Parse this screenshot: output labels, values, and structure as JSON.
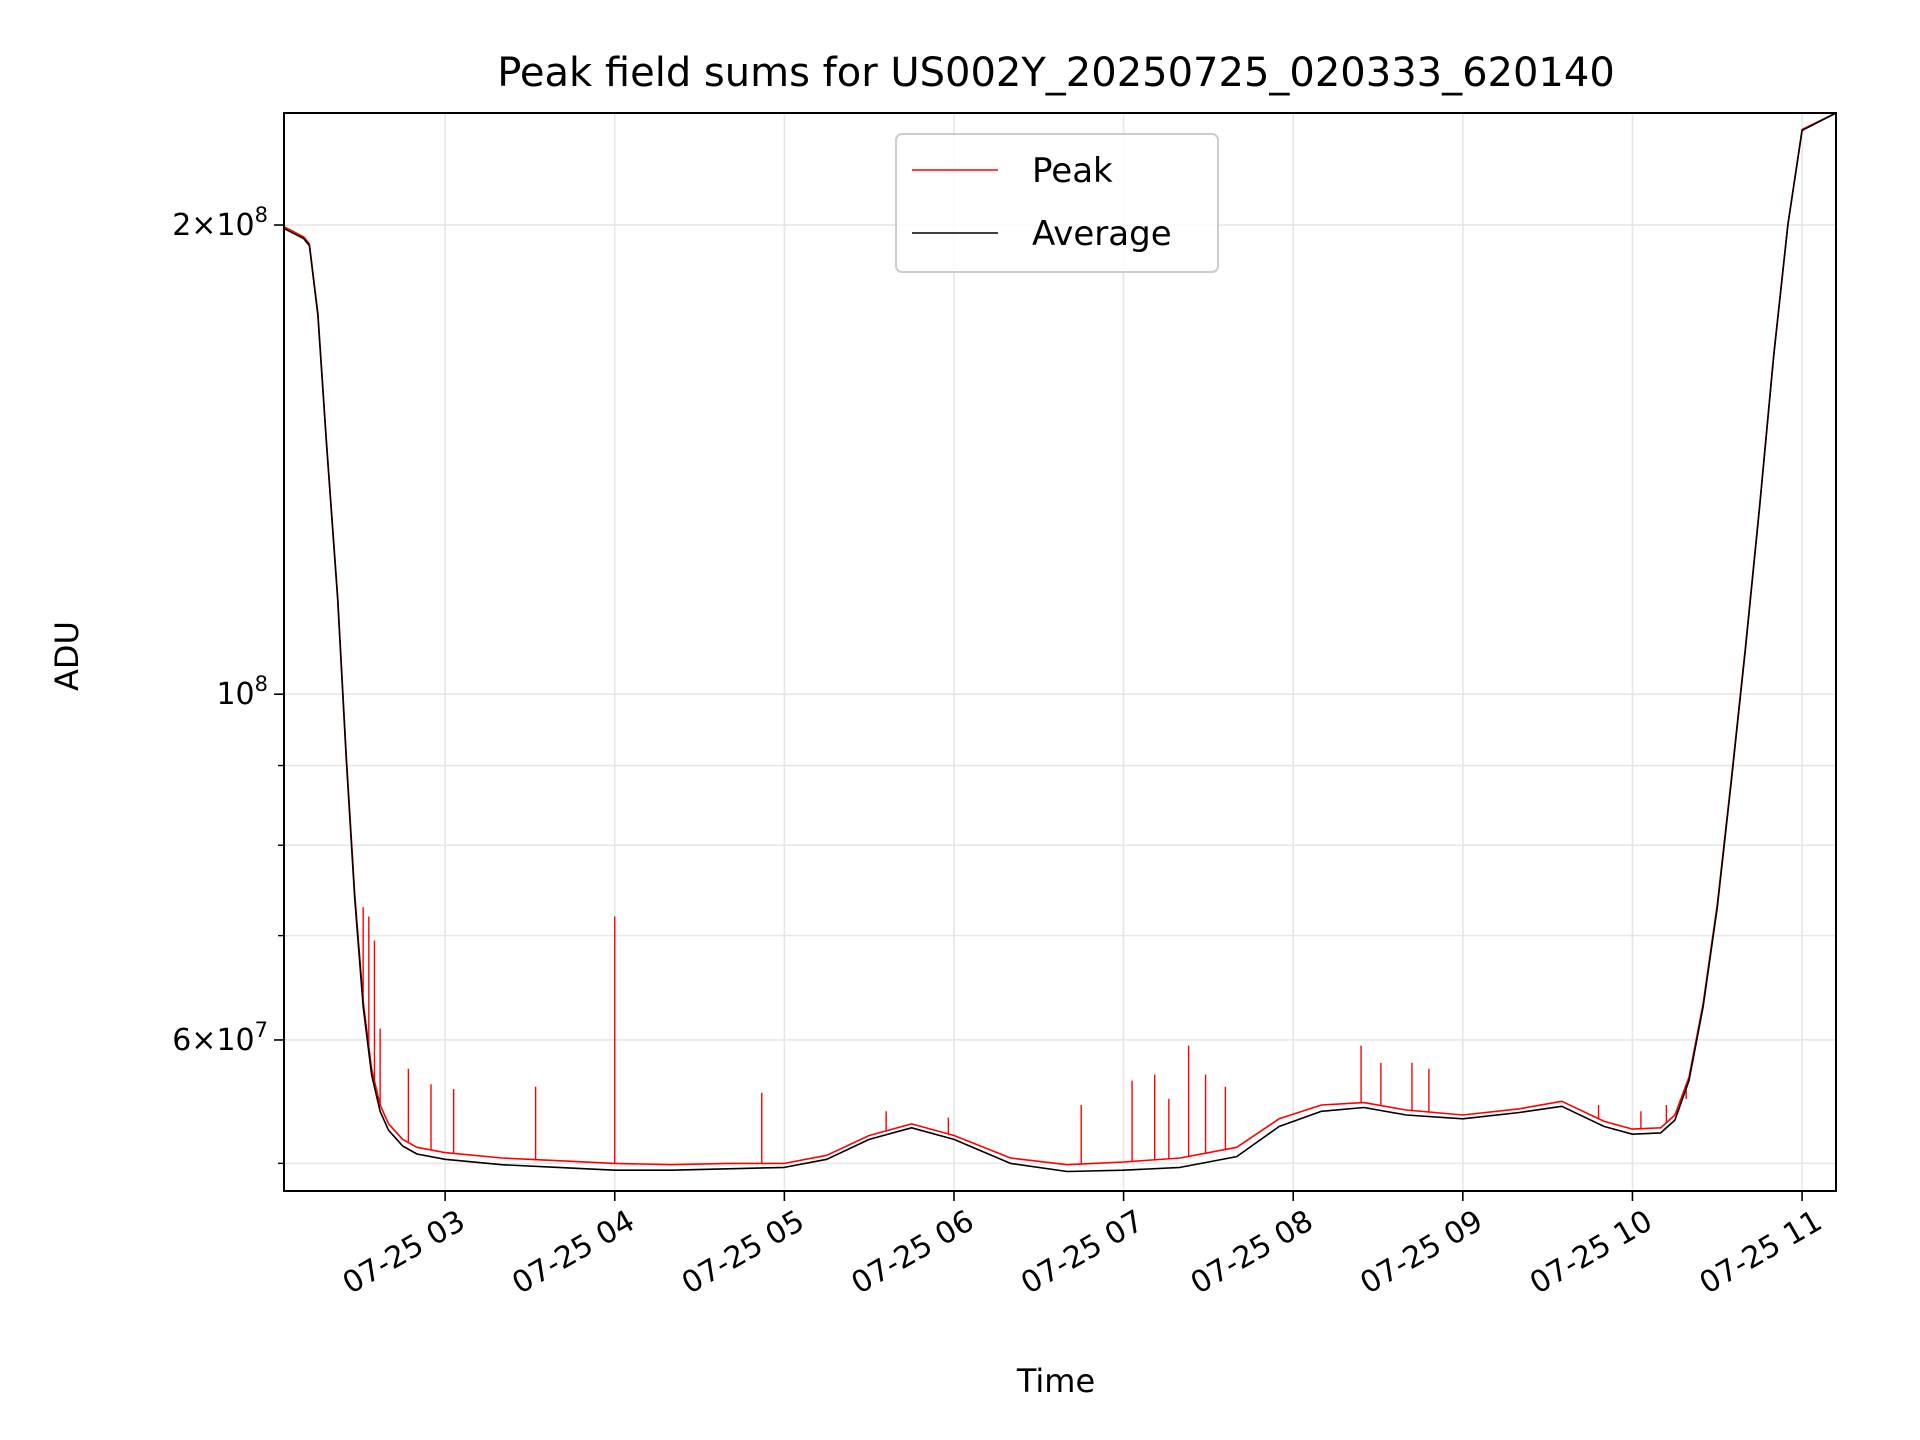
{
  "chart_data": {
    "type": "line",
    "title": "Peak field sums for US002Y_20250725_020333_620140",
    "xlabel": "Time",
    "ylabel": "ADU",
    "y_scale": "log",
    "xlim": [
      "2025-07-25 02:03",
      "2025-07-25 11:12"
    ],
    "ylim": [
      48000000,
      236000000
    ],
    "x_ticks": [
      "07-25 03",
      "07-25 04",
      "07-25 05",
      "07-25 06",
      "07-25 07",
      "07-25 08",
      "07-25 09",
      "07-25 10",
      "07-25 11"
    ],
    "y_major_ticks": [
      {
        "value": 60000000,
        "base": "6",
        "exp": "7"
      },
      {
        "value": 100000000,
        "base": "",
        "exp": "8"
      },
      {
        "value": 200000000,
        "base": "2",
        "exp": "8"
      }
    ],
    "y_minor_ticks": [
      50000000,
      70000000,
      80000000,
      90000000
    ],
    "grid": true,
    "legend_position": "upper-center",
    "colors": {
      "Peak": "#ff0000",
      "Average": "#000000"
    },
    "series": [
      {
        "name": "Average",
        "x": [
          "2025-07-25 02:03",
          "2025-07-25 02:10",
          "2025-07-25 02:12",
          "2025-07-25 02:15",
          "2025-07-25 02:18",
          "2025-07-25 02:22",
          "2025-07-25 02:25",
          "2025-07-25 02:28",
          "2025-07-25 02:31",
          "2025-07-25 02:34",
          "2025-07-25 02:37",
          "2025-07-25 02:40",
          "2025-07-25 02:45",
          "2025-07-25 02:50",
          "2025-07-25 03:00",
          "2025-07-25 03:20",
          "2025-07-25 03:40",
          "2025-07-25 04:00",
          "2025-07-25 04:20",
          "2025-07-25 04:40",
          "2025-07-25 05:00",
          "2025-07-25 05:15",
          "2025-07-25 05:30",
          "2025-07-25 05:45",
          "2025-07-25 06:00",
          "2025-07-25 06:20",
          "2025-07-25 06:40",
          "2025-07-25 07:00",
          "2025-07-25 07:20",
          "2025-07-25 07:40",
          "2025-07-25 07:55",
          "2025-07-25 08:10",
          "2025-07-25 08:25",
          "2025-07-25 08:40",
          "2025-07-25 09:00",
          "2025-07-25 09:20",
          "2025-07-25 09:35",
          "2025-07-25 09:50",
          "2025-07-25 10:00",
          "2025-07-25 10:10",
          "2025-07-25 10:15",
          "2025-07-25 10:20",
          "2025-07-25 10:25",
          "2025-07-25 10:30",
          "2025-07-25 10:35",
          "2025-07-25 10:40",
          "2025-07-25 10:45",
          "2025-07-25 10:50",
          "2025-07-25 10:55",
          "2025-07-25 11:00",
          "2025-07-25 11:12"
        ],
        "values": [
          199000000,
          196000000,
          194000000,
          175000000,
          145000000,
          115000000,
          91000000,
          74000000,
          63000000,
          57000000,
          54000000,
          52500000,
          51300000,
          50700000,
          50300000,
          49900000,
          49700000,
          49500000,
          49500000,
          49600000,
          49700000,
          50300000,
          51800000,
          52700000,
          51800000,
          50000000,
          49400000,
          49500000,
          49700000,
          50500000,
          52800000,
          54000000,
          54300000,
          53700000,
          53400000,
          53900000,
          54400000,
          52800000,
          52200000,
          52300000,
          53300000,
          56500000,
          63000000,
          73000000,
          88000000,
          107000000,
          132000000,
          165000000,
          200000000,
          230000000,
          236000000
        ]
      },
      {
        "name": "Peak",
        "x": [
          "2025-07-25 02:03",
          "2025-07-25 02:10",
          "2025-07-25 02:12",
          "2025-07-25 02:15",
          "2025-07-25 02:18",
          "2025-07-25 02:22",
          "2025-07-25 02:25",
          "2025-07-25 02:28",
          "2025-07-25 02:31",
          "2025-07-25 02:34",
          "2025-07-25 02:37",
          "2025-07-25 02:40",
          "2025-07-25 02:45",
          "2025-07-25 02:50",
          "2025-07-25 03:00",
          "2025-07-25 03:20",
          "2025-07-25 03:40",
          "2025-07-25 04:00",
          "2025-07-25 04:20",
          "2025-07-25 04:40",
          "2025-07-25 05:00",
          "2025-07-25 05:15",
          "2025-07-25 05:30",
          "2025-07-25 05:45",
          "2025-07-25 06:00",
          "2025-07-25 06:20",
          "2025-07-25 06:40",
          "2025-07-25 07:00",
          "2025-07-25 07:20",
          "2025-07-25 07:40",
          "2025-07-25 07:55",
          "2025-07-25 08:10",
          "2025-07-25 08:25",
          "2025-07-25 08:40",
          "2025-07-25 09:00",
          "2025-07-25 09:20",
          "2025-07-25 09:35",
          "2025-07-25 09:50",
          "2025-07-25 10:00",
          "2025-07-25 10:10",
          "2025-07-25 10:15",
          "2025-07-25 10:20",
          "2025-07-25 10:25",
          "2025-07-25 10:30",
          "2025-07-25 10:35",
          "2025-07-25 10:40",
          "2025-07-25 10:45",
          "2025-07-25 10:50",
          "2025-07-25 10:55",
          "2025-07-25 11:00",
          "2025-07-25 11:12"
        ],
        "values": [
          199500000,
          196500000,
          194500000,
          175500000,
          145500000,
          115500000,
          91500000,
          74500000,
          63500000,
          57500000,
          54500000,
          53000000,
          51800000,
          51200000,
          50800000,
          50400000,
          50200000,
          50000000,
          49900000,
          50000000,
          50000000,
          50600000,
          52100000,
          53000000,
          52100000,
          50400000,
          49900000,
          50100000,
          50400000,
          51200000,
          53400000,
          54500000,
          54700000,
          54100000,
          53700000,
          54200000,
          54800000,
          53200000,
          52600000,
          52700000,
          53700000,
          56800000,
          63300000,
          73300000,
          88300000,
          107300000,
          132300000,
          165300000,
          200300000,
          230300000,
          236000000
        ],
        "spikes": [
          {
            "x": "2025-07-25 02:31",
            "value": 73000000
          },
          {
            "x": "2025-07-25 02:33",
            "value": 72000000
          },
          {
            "x": "2025-07-25 02:35",
            "value": 69500000
          },
          {
            "x": "2025-07-25 02:37",
            "value": 61000000
          },
          {
            "x": "2025-07-25 02:47",
            "value": 57500000
          },
          {
            "x": "2025-07-25 02:55",
            "value": 56200000
          },
          {
            "x": "2025-07-25 03:03",
            "value": 55800000
          },
          {
            "x": "2025-07-25 03:32",
            "value": 56000000
          },
          {
            "x": "2025-07-25 04:00",
            "value": 72000000
          },
          {
            "x": "2025-07-25 04:52",
            "value": 55500000
          },
          {
            "x": "2025-07-25 05:36",
            "value": 54000000
          },
          {
            "x": "2025-07-25 05:58",
            "value": 53500000
          },
          {
            "x": "2025-07-25 06:45",
            "value": 54500000
          },
          {
            "x": "2025-07-25 07:03",
            "value": 56500000
          },
          {
            "x": "2025-07-25 07:11",
            "value": 57000000
          },
          {
            "x": "2025-07-25 07:16",
            "value": 55000000
          },
          {
            "x": "2025-07-25 07:23",
            "value": 59500000
          },
          {
            "x": "2025-07-25 07:29",
            "value": 57000000
          },
          {
            "x": "2025-07-25 07:36",
            "value": 56000000
          },
          {
            "x": "2025-07-25 08:24",
            "value": 59500000
          },
          {
            "x": "2025-07-25 08:31",
            "value": 58000000
          },
          {
            "x": "2025-07-25 08:42",
            "value": 58000000
          },
          {
            "x": "2025-07-25 08:48",
            "value": 57500000
          },
          {
            "x": "2025-07-25 09:48",
            "value": 54500000
          },
          {
            "x": "2025-07-25 10:03",
            "value": 54000000
          },
          {
            "x": "2025-07-25 10:12",
            "value": 54500000
          },
          {
            "x": "2025-07-25 10:19",
            "value": 55000000
          }
        ]
      }
    ]
  }
}
